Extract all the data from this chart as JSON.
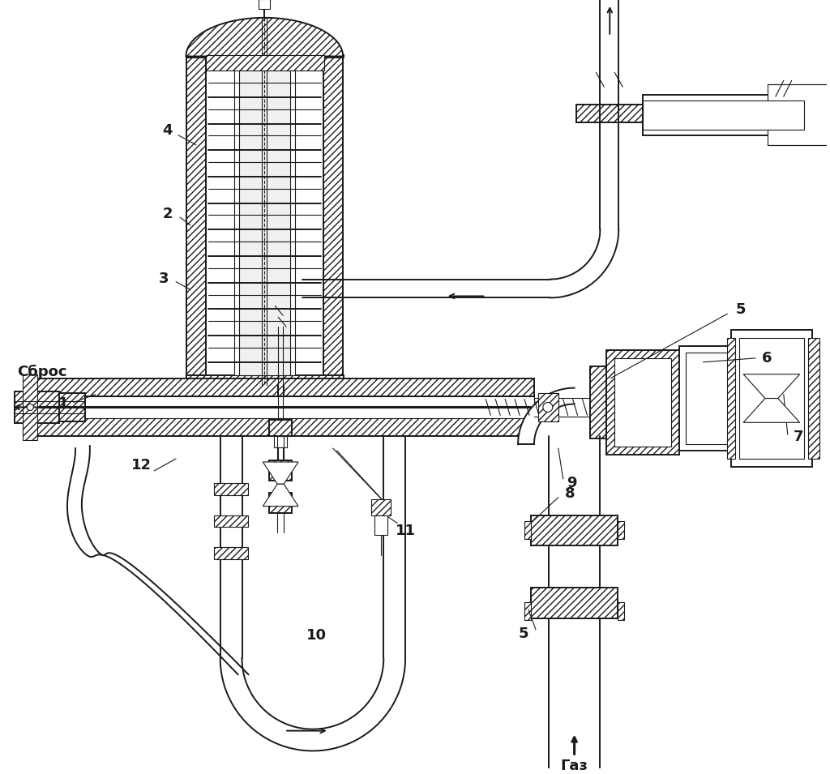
{
  "background_color": "#ffffff",
  "line_color": "#1a1a1a",
  "figsize": [
    10.24,
    9.55
  ],
  "dpi": 100
}
